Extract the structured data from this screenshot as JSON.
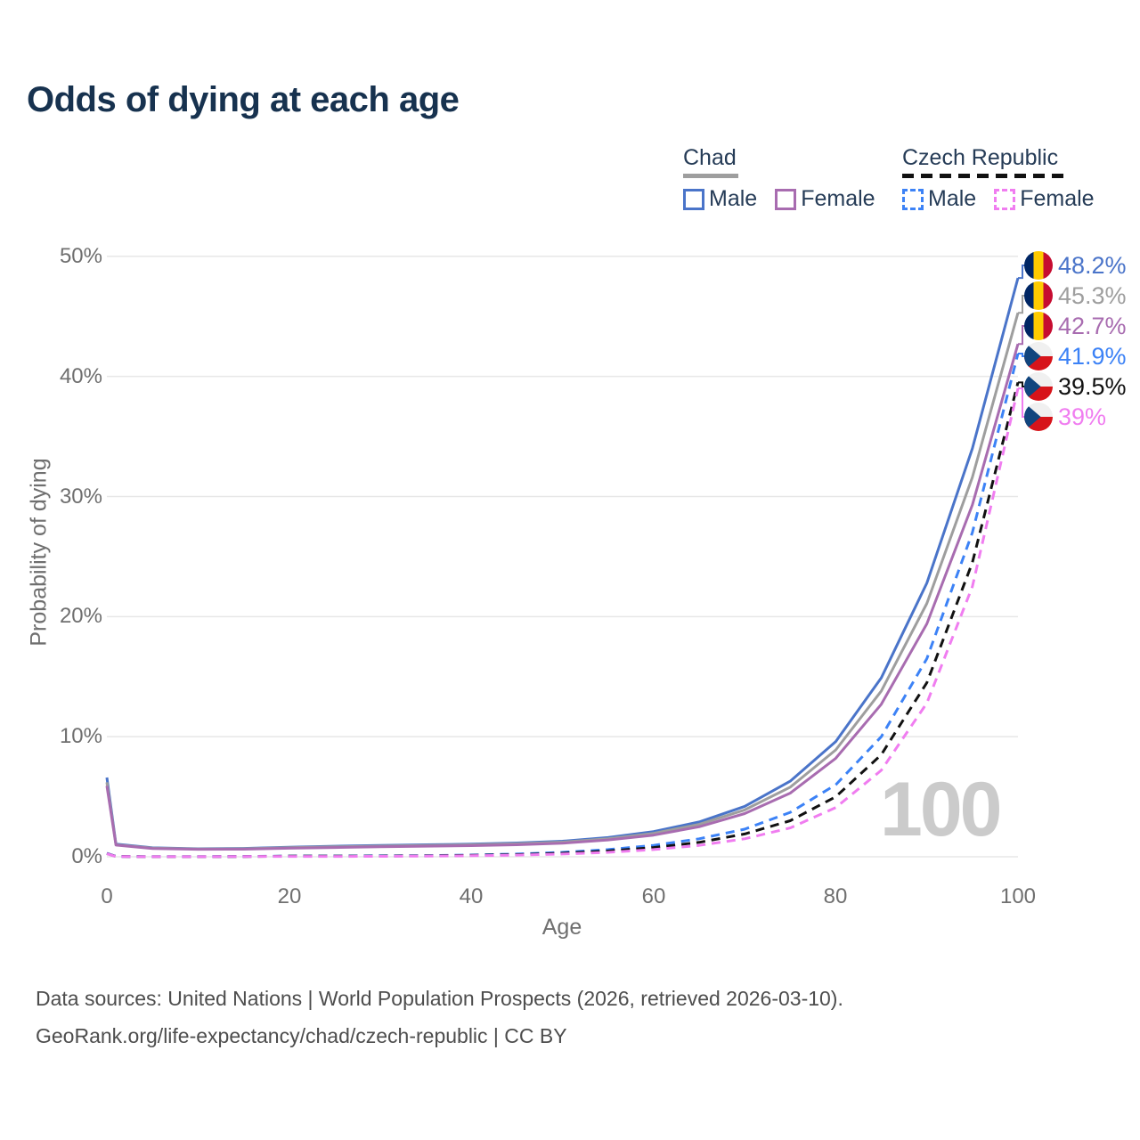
{
  "title": "Odds of dying at each age",
  "legend": {
    "groups": [
      {
        "name": "Chad",
        "style": "solid",
        "items": [
          {
            "label": "Male",
            "color": "#4a74c9"
          },
          {
            "label": "Female",
            "color": "#a86cb0"
          }
        ]
      },
      {
        "name": "Czech Republic",
        "style": "dashed",
        "items": [
          {
            "label": "Male",
            "color": "#3c82f6"
          },
          {
            "label": "Female",
            "color": "#f07df0"
          }
        ]
      }
    ]
  },
  "axes": {
    "x_label": "Age",
    "y_label": "Probability of dying",
    "x_ticks": [
      "0",
      "20",
      "40",
      "60",
      "80",
      "100"
    ],
    "y_ticks": [
      "0%",
      "10%",
      "20%",
      "30%",
      "40%",
      "50%"
    ]
  },
  "watermark": "100",
  "end_labels": [
    {
      "text": "48.2%",
      "value": 48.2,
      "color": "#4a74c9",
      "flag": "chad"
    },
    {
      "text": "45.3%",
      "value": 45.3,
      "color": "#9e9e9e",
      "flag": "chad"
    },
    {
      "text": "42.7%",
      "value": 42.7,
      "color": "#a86cb0",
      "flag": "chad"
    },
    {
      "text": "41.9%",
      "value": 41.9,
      "color": "#3c82f6",
      "flag": "czech"
    },
    {
      "text": "39.5%",
      "value": 39.5,
      "color": "#111111",
      "flag": "czech"
    },
    {
      "text": "39%",
      "value": 39.0,
      "color": "#f07df0",
      "flag": "czech"
    }
  ],
  "source": {
    "line1": "Data sources: United Nations | World Population Prospects (2026, retrieved 2026-03-10).",
    "line2": "GeoRank.org/life-expectancy/chad/czech-republic | CC BY"
  },
  "chart_data": {
    "type": "line",
    "title": "Odds of dying at each age",
    "xlabel": "Age",
    "ylabel": "Probability of dying",
    "unit": "%",
    "xlim": [
      0,
      100
    ],
    "ylim": [
      0,
      50
    ],
    "grid": "horizontal",
    "legend_position": "top-right",
    "x": [
      0,
      1,
      5,
      10,
      15,
      20,
      25,
      30,
      35,
      40,
      45,
      50,
      55,
      60,
      65,
      70,
      75,
      80,
      85,
      90,
      95,
      100
    ],
    "series": [
      {
        "name": "Chad Male",
        "line": "solid",
        "color": "#4a74c9",
        "values": [
          6.6,
          1.05,
          0.75,
          0.67,
          0.7,
          0.8,
          0.88,
          0.95,
          1.0,
          1.05,
          1.15,
          1.3,
          1.6,
          2.1,
          2.9,
          4.2,
          6.3,
          9.6,
          14.9,
          22.8,
          34.0,
          48.2
        ]
      },
      {
        "name": "Chad Both sexes",
        "line": "solid",
        "color": "#9e9e9e",
        "values": [
          6.2,
          1.0,
          0.72,
          0.65,
          0.67,
          0.76,
          0.83,
          0.89,
          0.94,
          1.0,
          1.08,
          1.22,
          1.5,
          1.95,
          2.7,
          3.9,
          5.8,
          8.9,
          13.8,
          21.1,
          31.6,
          45.3
        ]
      },
      {
        "name": "Chad Female",
        "line": "solid",
        "color": "#a86cb0",
        "values": [
          5.9,
          0.97,
          0.69,
          0.62,
          0.63,
          0.71,
          0.77,
          0.83,
          0.88,
          0.93,
          1.0,
          1.13,
          1.4,
          1.8,
          2.5,
          3.6,
          5.3,
          8.2,
          12.7,
          19.4,
          29.3,
          42.7
        ]
      },
      {
        "name": "Czech Republic Male",
        "line": "dashed",
        "color": "#3c82f6",
        "values": [
          0.3,
          0.03,
          0.01,
          0.01,
          0.03,
          0.06,
          0.07,
          0.08,
          0.1,
          0.15,
          0.23,
          0.37,
          0.6,
          0.95,
          1.5,
          2.3,
          3.7,
          6.0,
          10.0,
          16.5,
          27.0,
          41.9
        ]
      },
      {
        "name": "Czech Republic Both sexes",
        "line": "dashed",
        "color": "#111111",
        "values": [
          0.27,
          0.03,
          0.01,
          0.01,
          0.02,
          0.05,
          0.05,
          0.06,
          0.08,
          0.12,
          0.18,
          0.3,
          0.48,
          0.77,
          1.2,
          1.9,
          3.0,
          5.0,
          8.5,
          14.5,
          24.5,
          39.5
        ]
      },
      {
        "name": "Czech Republic Female",
        "line": "dashed",
        "color": "#f07df0",
        "values": [
          0.25,
          0.02,
          0.01,
          0.01,
          0.02,
          0.03,
          0.03,
          0.04,
          0.06,
          0.09,
          0.14,
          0.23,
          0.37,
          0.6,
          0.95,
          1.5,
          2.4,
          4.1,
          7.2,
          12.8,
          22.5,
          39.0
        ]
      }
    ]
  }
}
